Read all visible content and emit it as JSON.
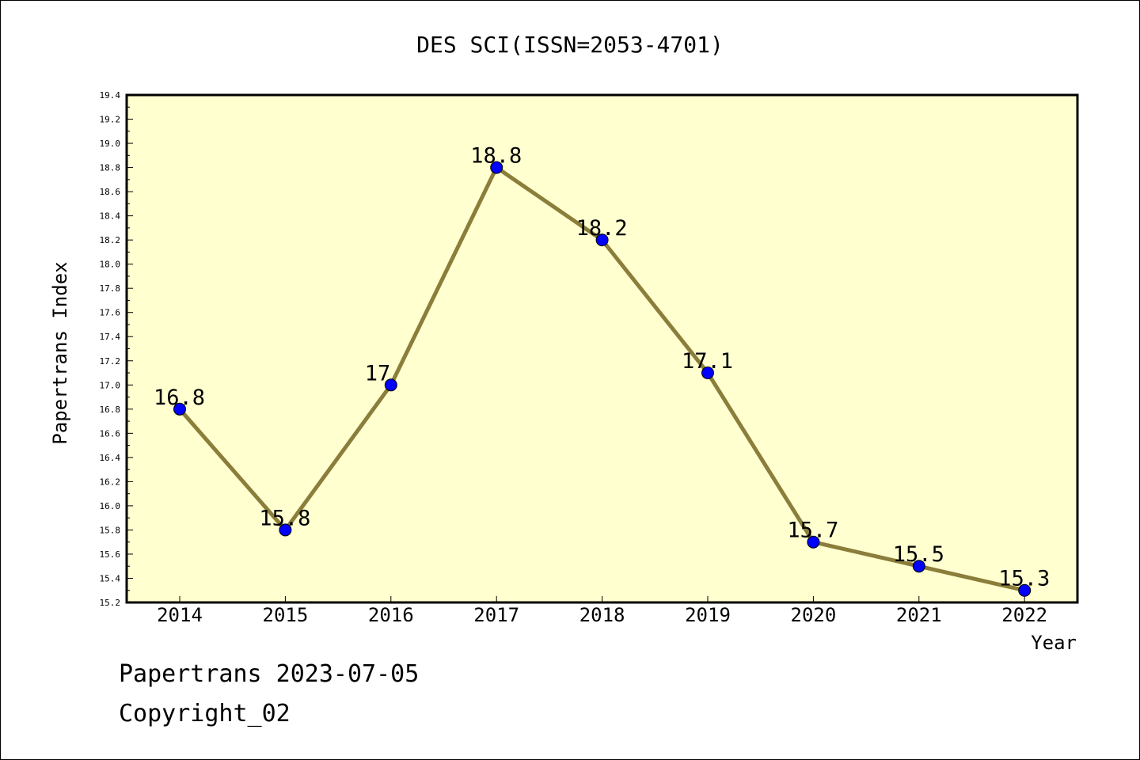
{
  "chart_data": {
    "type": "line",
    "title": "DES SCI(ISSN=2053-4701)",
    "xlabel": "Year",
    "ylabel": "Papertrans Index",
    "categories": [
      "2014",
      "2015",
      "2016",
      "2017",
      "2018",
      "2019",
      "2020",
      "2021",
      "2022"
    ],
    "series": [
      {
        "values": [
          16.8,
          15.8,
          17.0,
          18.8,
          18.2,
          17.1,
          15.7,
          15.5,
          15.3
        ],
        "data_labels": [
          "16.8",
          "15.8",
          "17",
          "18.8",
          "18.2",
          "17.1",
          "15.7",
          "15.5",
          "15.3"
        ],
        "line_color": "#8b7d3a",
        "marker_color": "#0000ff"
      }
    ],
    "ylim": [
      15.2,
      19.4
    ],
    "yticks": [
      "15.2",
      "15.4",
      "15.6",
      "15.8",
      "16.0",
      "16.2",
      "16.4",
      "16.6",
      "16.8",
      "17.0",
      "17.2",
      "17.4",
      "17.6",
      "17.8",
      "18.0",
      "18.2",
      "18.4",
      "18.6",
      "18.8",
      "19.0",
      "19.2",
      "19.4"
    ],
    "plot_background": "#ffffd0",
    "grid": false,
    "legend": "none"
  },
  "footer": {
    "line1": "Papertrans 2023-07-05",
    "line2": "Copyright_02"
  }
}
